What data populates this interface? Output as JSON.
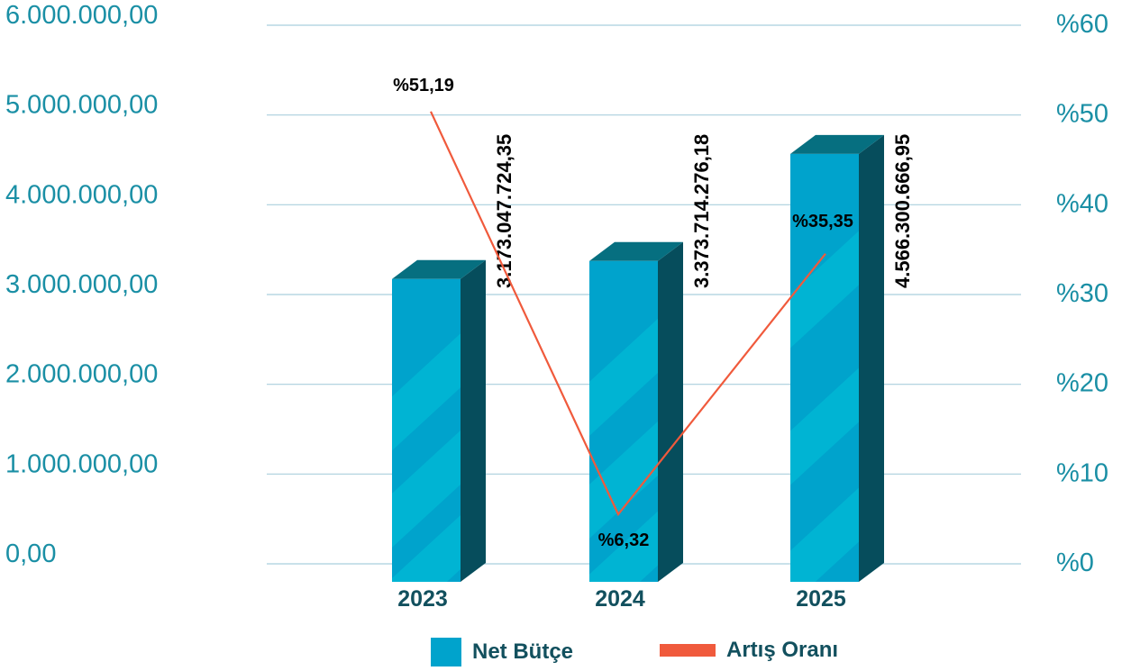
{
  "chart_data": {
    "type": "bar",
    "categories": [
      "2023",
      "2024",
      "2025"
    ],
    "series": [
      {
        "name": "Net Bütçe",
        "type": "bar",
        "axis": "left",
        "values": [
          3173047724.35,
          3373714276.18,
          4566300666.95
        ],
        "value_labels": [
          "3.173.047.724,35",
          "3.373.714.276,18",
          "4.566.300.666,95"
        ],
        "color": "#00a3cc"
      },
      {
        "name": "Artış Oranı",
        "type": "line",
        "axis": "right",
        "values": [
          51.19,
          6.32,
          35.35
        ],
        "value_labels": [
          "%51,19",
          "%6,32",
          "%35,35"
        ],
        "color": "#f05a3c"
      }
    ],
    "y_left": {
      "ticks": [
        "0,00",
        "1.000.000,00",
        "2.000.000,00",
        "3.000.000,00",
        "4.000.000,00",
        "5.000.000,00",
        "6.000.000,00"
      ],
      "range": [
        0,
        6000000
      ]
    },
    "y_right": {
      "ticks": [
        "%0",
        "%10",
        "%20",
        "%30",
        "%40",
        "%50",
        "%60"
      ],
      "range": [
        0,
        60
      ]
    },
    "grid": true,
    "legend_position": "bottom"
  },
  "colors": {
    "bar_front": "#00a3cc",
    "bar_front_light": "#00b7d4",
    "bar_side": "#064d5c",
    "bar_top": "#066f80",
    "line": "#f05a3c",
    "grid": "#a9cfdd",
    "axis_text": "#1a8fa5",
    "category_text": "#12505e"
  }
}
